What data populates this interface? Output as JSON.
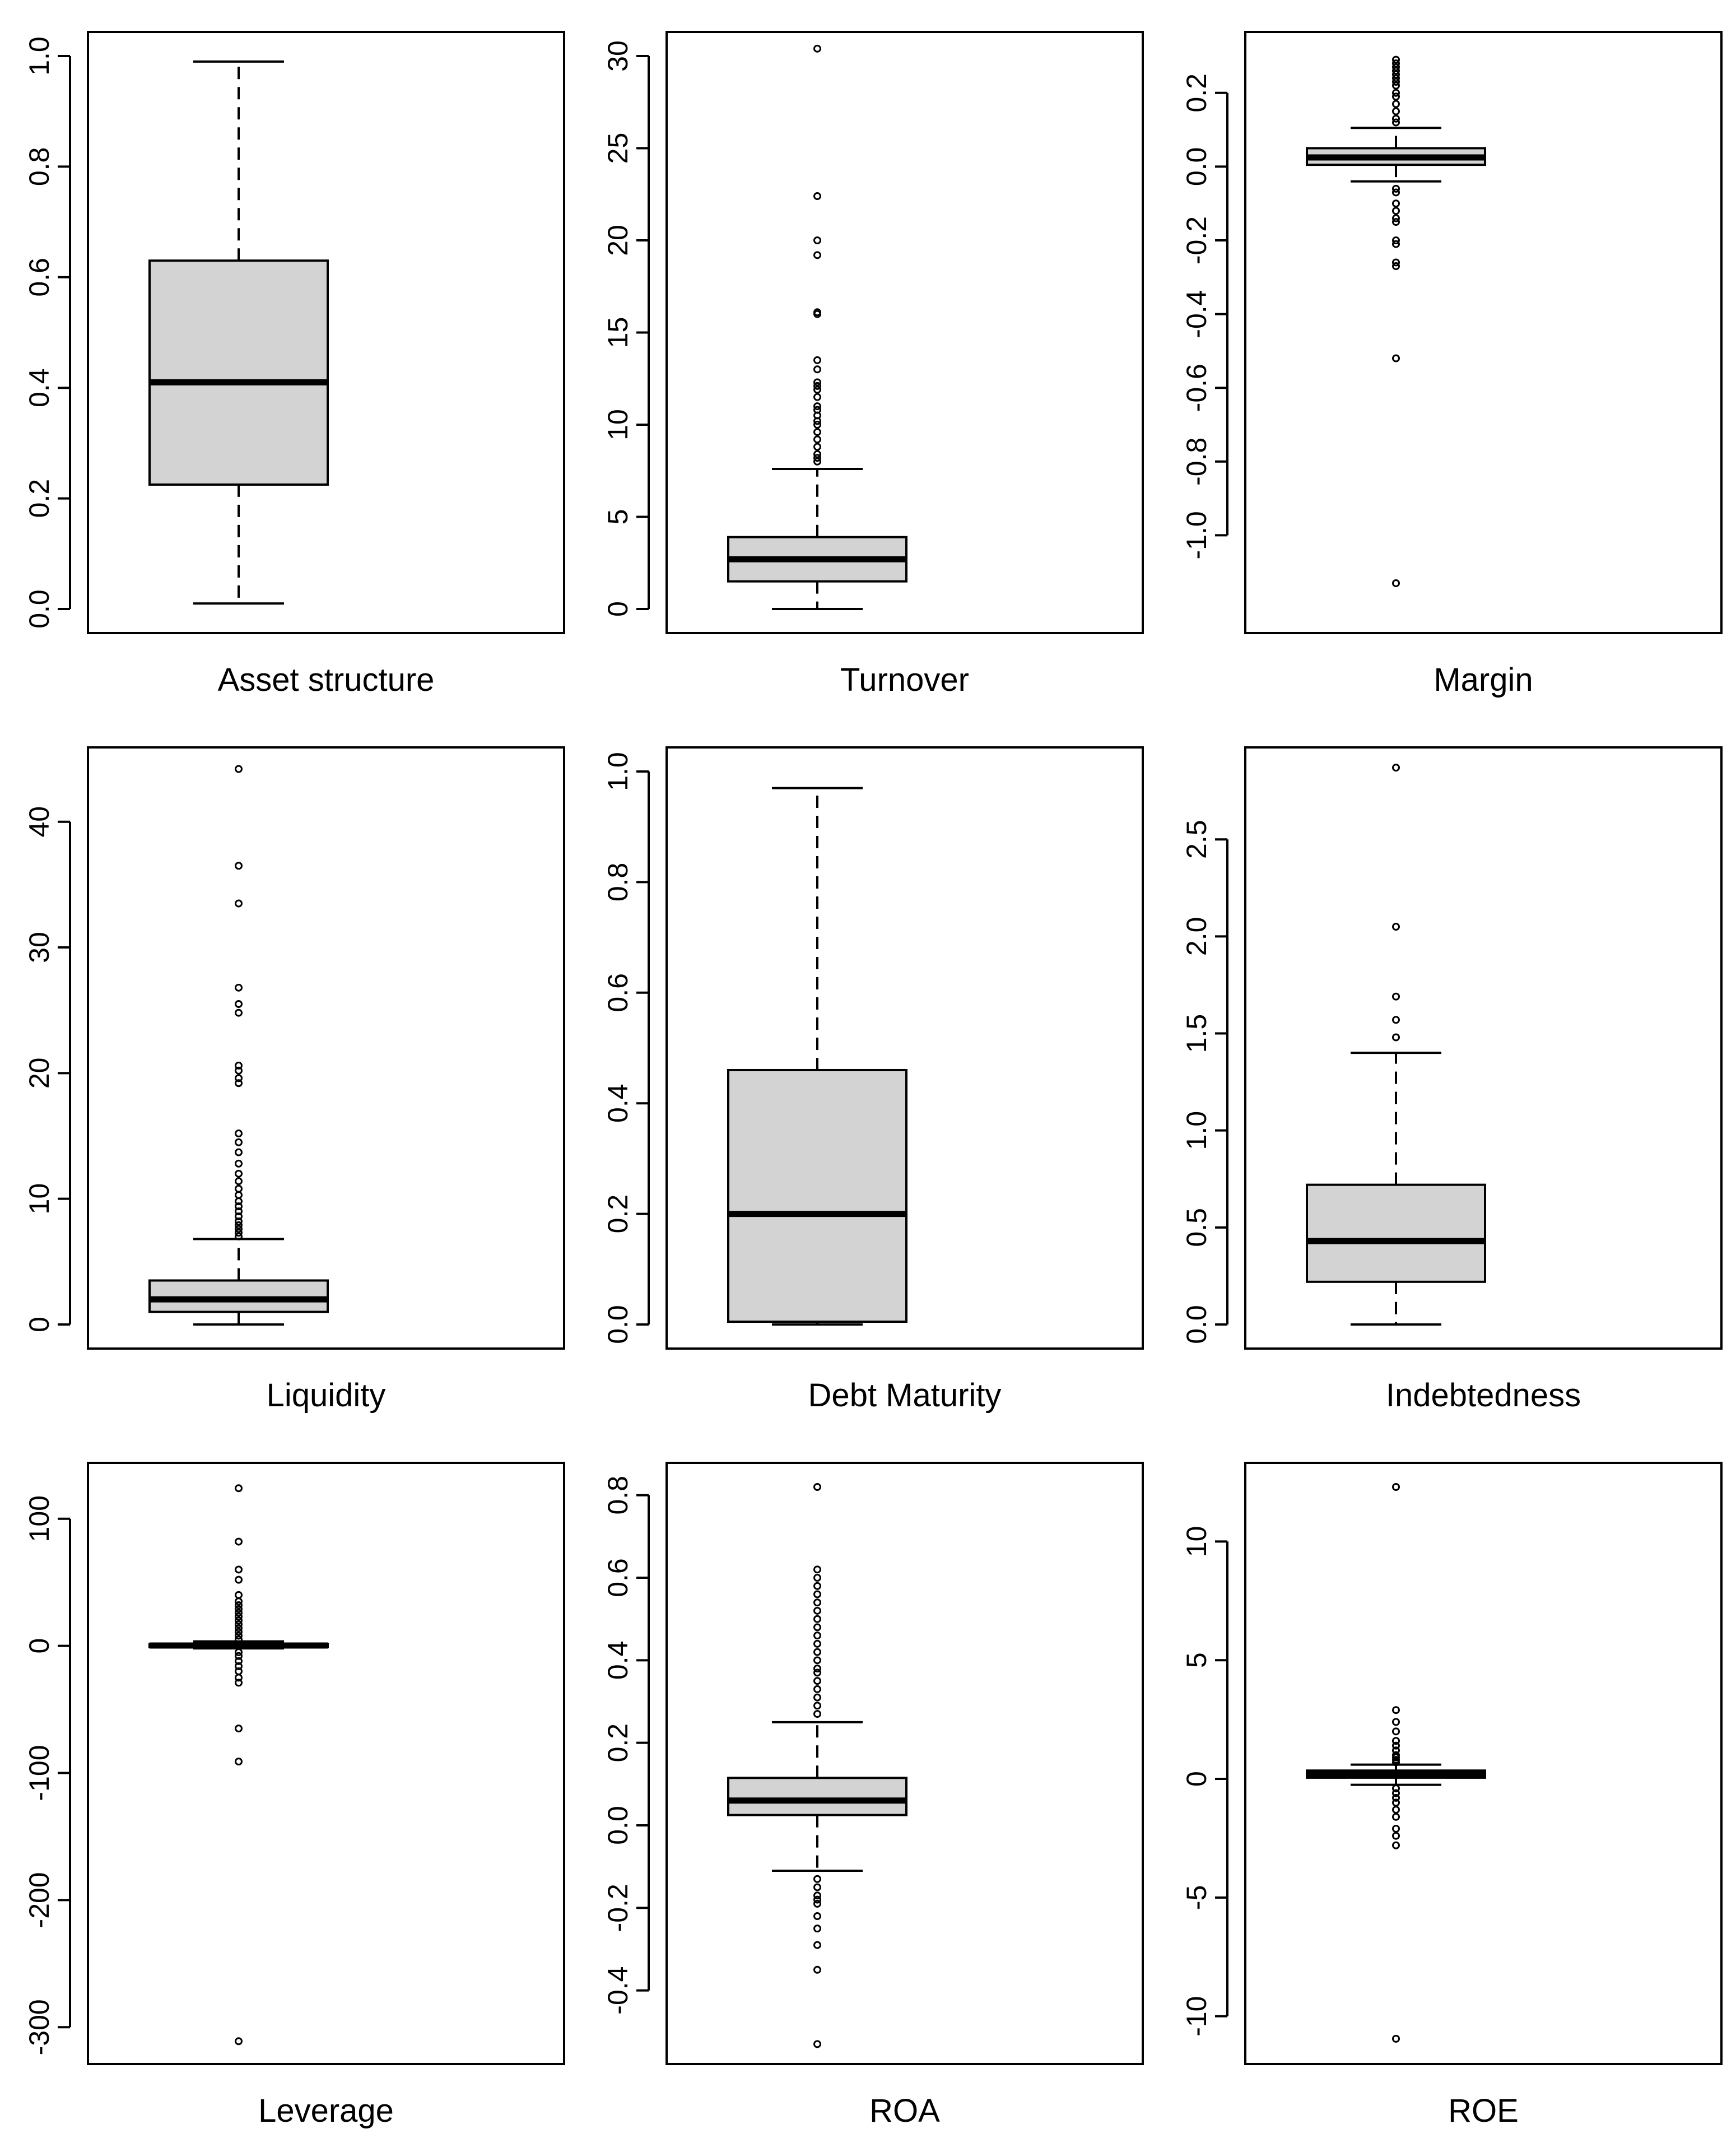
{
  "chart_data": [
    {
      "type": "boxplot",
      "xlabel": "Asset structure",
      "ylim": [
        0.0,
        1.0
      ],
      "ticks": [
        "0.0",
        "0.2",
        "0.4",
        "0.6",
        "0.8",
        "1.0"
      ],
      "whisker_low": 0.01,
      "q1": 0.225,
      "median": 0.41,
      "q3": 0.63,
      "whisker_high": 0.99,
      "outliers": []
    },
    {
      "type": "boxplot",
      "xlabel": "Turnover",
      "ylim": [
        0,
        30
      ],
      "ticks": [
        "0",
        "5",
        "10",
        "15",
        "20",
        "25",
        "30"
      ],
      "whisker_low": 0.0,
      "q1": 1.5,
      "median": 2.7,
      "q3": 3.9,
      "whisker_high": 7.6,
      "outliers": [
        8.0,
        8.2,
        8.4,
        8.8,
        9.2,
        9.6,
        10.0,
        10.2,
        10.5,
        10.8,
        11.0,
        11.5,
        11.9,
        12.1,
        12.3,
        13.0,
        13.5,
        16.0,
        16.1,
        19.2,
        20.0,
        22.4,
        30.4
      ]
    },
    {
      "type": "boxplot",
      "xlabel": "Margin",
      "ylim": [
        -1.2,
        0.3
      ],
      "ticks": [
        "-1.0",
        "-0.8",
        "-0.6",
        "-0.4",
        "-0.2",
        "0.0",
        "0.2"
      ],
      "whisker_low": -0.04,
      "q1": 0.005,
      "median": 0.025,
      "q3": 0.05,
      "whisker_high": 0.105,
      "outliers": [
        0.12,
        0.13,
        0.15,
        0.17,
        0.19,
        0.2,
        0.22,
        0.23,
        0.24,
        0.25,
        0.26,
        0.27,
        0.28,
        0.29,
        -0.06,
        -0.07,
        -0.1,
        -0.12,
        -0.14,
        -0.15,
        -0.2,
        -0.21,
        -0.26,
        -0.27,
        -0.52,
        -1.13
      ]
    },
    {
      "type": "boxplot",
      "xlabel": "Liquidity",
      "ylim": [
        0,
        44
      ],
      "ticks": [
        "0",
        "10",
        "20",
        "30",
        "40"
      ],
      "whisker_low": 0.0,
      "q1": 1.0,
      "median": 2.0,
      "q3": 3.5,
      "whisker_high": 6.8,
      "outliers": [
        7.0,
        7.3,
        7.6,
        7.9,
        8.2,
        8.6,
        9.0,
        9.4,
        9.8,
        10.3,
        10.8,
        11.4,
        12.0,
        12.8,
        13.7,
        14.5,
        15.2,
        19.2,
        19.6,
        20.2,
        20.6,
        24.8,
        25.5,
        26.8,
        33.5,
        36.5,
        44.2
      ]
    },
    {
      "type": "boxplot",
      "xlabel": "Debt Maturity",
      "ylim": [
        0.0,
        1.0
      ],
      "ticks": [
        "0.0",
        "0.2",
        "0.4",
        "0.6",
        "0.8",
        "1.0"
      ],
      "whisker_low": 0.0,
      "q1": 0.005,
      "median": 0.2,
      "q3": 0.46,
      "whisker_high": 0.97,
      "outliers": []
    },
    {
      "type": "boxplot",
      "xlabel": "Indebtedness",
      "ylim": [
        0.0,
        2.85
      ],
      "ticks": [
        "0.0",
        "0.5",
        "1.0",
        "1.5",
        "2.0",
        "2.5"
      ],
      "whisker_low": 0.0,
      "q1": 0.22,
      "median": 0.43,
      "q3": 0.72,
      "whisker_high": 1.4,
      "outliers": [
        1.48,
        1.57,
        1.69,
        2.05,
        2.87
      ]
    },
    {
      "type": "boxplot",
      "xlabel": "Leverage",
      "ylim": [
        -310,
        125
      ],
      "ticks": [
        "-300",
        "-200",
        "-100",
        "0",
        "100"
      ],
      "whisker_low": -2.0,
      "q1": -1.0,
      "median": 0.3,
      "q3": 1.5,
      "whisker_high": 3.5,
      "outliers": [
        5,
        8,
        11,
        14,
        17,
        20,
        23,
        26,
        29,
        32,
        35,
        40,
        52,
        60,
        82,
        124,
        -5,
        -8,
        -12,
        -16,
        -20,
        -25,
        -29,
        -65,
        -91,
        -311
      ]
    },
    {
      "type": "boxplot",
      "xlabel": "ROA",
      "ylim": [
        -0.52,
        0.82
      ],
      "ticks": [
        "-0.4",
        "-0.2",
        "0.0",
        "0.2",
        "0.4",
        "0.6",
        "0.8"
      ],
      "whisker_low": -0.11,
      "q1": 0.025,
      "median": 0.06,
      "q3": 0.115,
      "whisker_high": 0.25,
      "outliers": [
        0.27,
        0.29,
        0.31,
        0.33,
        0.35,
        0.37,
        0.38,
        0.4,
        0.42,
        0.44,
        0.46,
        0.48,
        0.5,
        0.52,
        0.54,
        0.56,
        0.58,
        0.6,
        0.62,
        0.82,
        -0.13,
        -0.15,
        -0.17,
        -0.18,
        -0.19,
        -0.22,
        -0.25,
        -0.29,
        -0.35,
        -0.53
      ]
    },
    {
      "type": "boxplot",
      "xlabel": "ROE",
      "ylim": [
        -11,
        12.3
      ],
      "ticks": [
        "-10",
        "-5",
        "0",
        "5",
        "10"
      ],
      "whisker_low": -0.25,
      "q1": 0.05,
      "median": 0.2,
      "q3": 0.35,
      "whisker_high": 0.6,
      "outliers": [
        0.7,
        0.8,
        0.9,
        1.0,
        1.2,
        1.4,
        1.6,
        2.0,
        2.4,
        2.9,
        12.3,
        -0.4,
        -0.6,
        -0.8,
        -1.0,
        -1.3,
        -1.6,
        -2.1,
        -2.4,
        -2.8,
        -10.95
      ]
    }
  ]
}
